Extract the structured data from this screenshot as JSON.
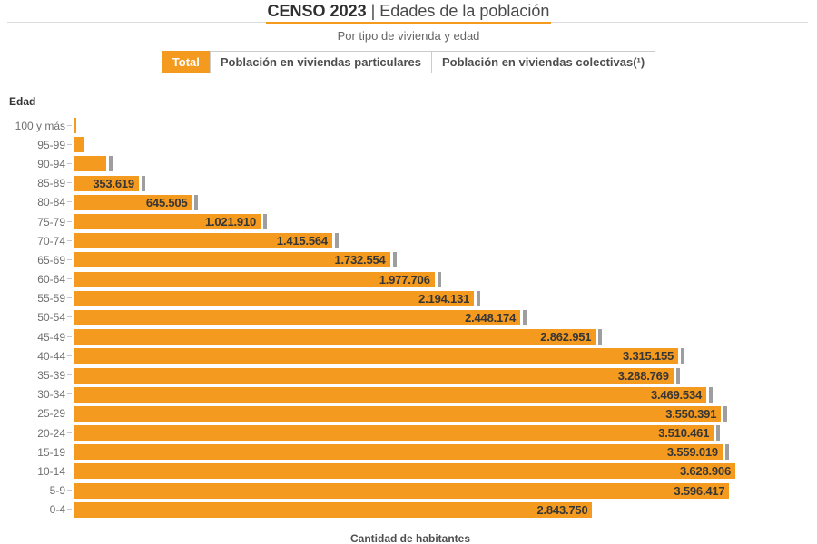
{
  "header": {
    "title_bold": "CENSO 2023",
    "title_separator": " | ",
    "title_regular": "Edades de la población",
    "subtitle": "Por tipo de vivienda y edad"
  },
  "tabs": [
    {
      "label": "Total",
      "selected": true
    },
    {
      "label": "Población en viviendas particulares",
      "selected": false
    },
    {
      "label": "Población en viviendas colectivas(¹)",
      "selected": false
    }
  ],
  "colors": {
    "bar": "#F49A1E",
    "selected_tab_bg": "#F49A1E",
    "title_underline": "#F49A1E",
    "end_marker": "#9E9E9E"
  },
  "chart_data": {
    "type": "bar",
    "orientation": "horizontal",
    "title": "CENSO 2023 | Edades de la población",
    "subtitle": "Por tipo de vivienda y edad",
    "ylabel": "Edad",
    "xlabel": "Cantidad de habitantes",
    "xlim": [
      0,
      3700000
    ],
    "grid": false,
    "legend": "none",
    "categories": [
      "100 y más",
      "95-99",
      "90-94",
      "85-89",
      "80-84",
      "75-79",
      "70-74",
      "65-69",
      "60-64",
      "55-59",
      "50-54",
      "45-49",
      "40-44",
      "35-39",
      "30-34",
      "25-29",
      "20-24",
      "15-19",
      "10-14",
      "5-9",
      "0-4"
    ],
    "values": [
      7000,
      50000,
      175000,
      353619,
      645505,
      1021910,
      1415564,
      1732554,
      1977706,
      2194131,
      2448174,
      2862951,
      3315155,
      3288769,
      3469534,
      3550391,
      3510461,
      3559019,
      3628906,
      3596417,
      2843750
    ],
    "value_labels": [
      "",
      "",
      "",
      "353.619",
      "645.505",
      "1.021.910",
      "1.415.564",
      "1.732.554",
      "1.977.706",
      "2.194.131",
      "2.448.174",
      "2.862.951",
      "3.315.155",
      "3.288.769",
      "3.469.534",
      "3.550.391",
      "3.510.461",
      "3.559.019",
      "3.628.906",
      "3.596.417",
      "2.843.750"
    ],
    "end_markers": [
      false,
      false,
      true,
      true,
      true,
      true,
      true,
      true,
      true,
      true,
      true,
      true,
      true,
      true,
      true,
      true,
      true,
      true,
      false,
      false,
      false
    ]
  }
}
